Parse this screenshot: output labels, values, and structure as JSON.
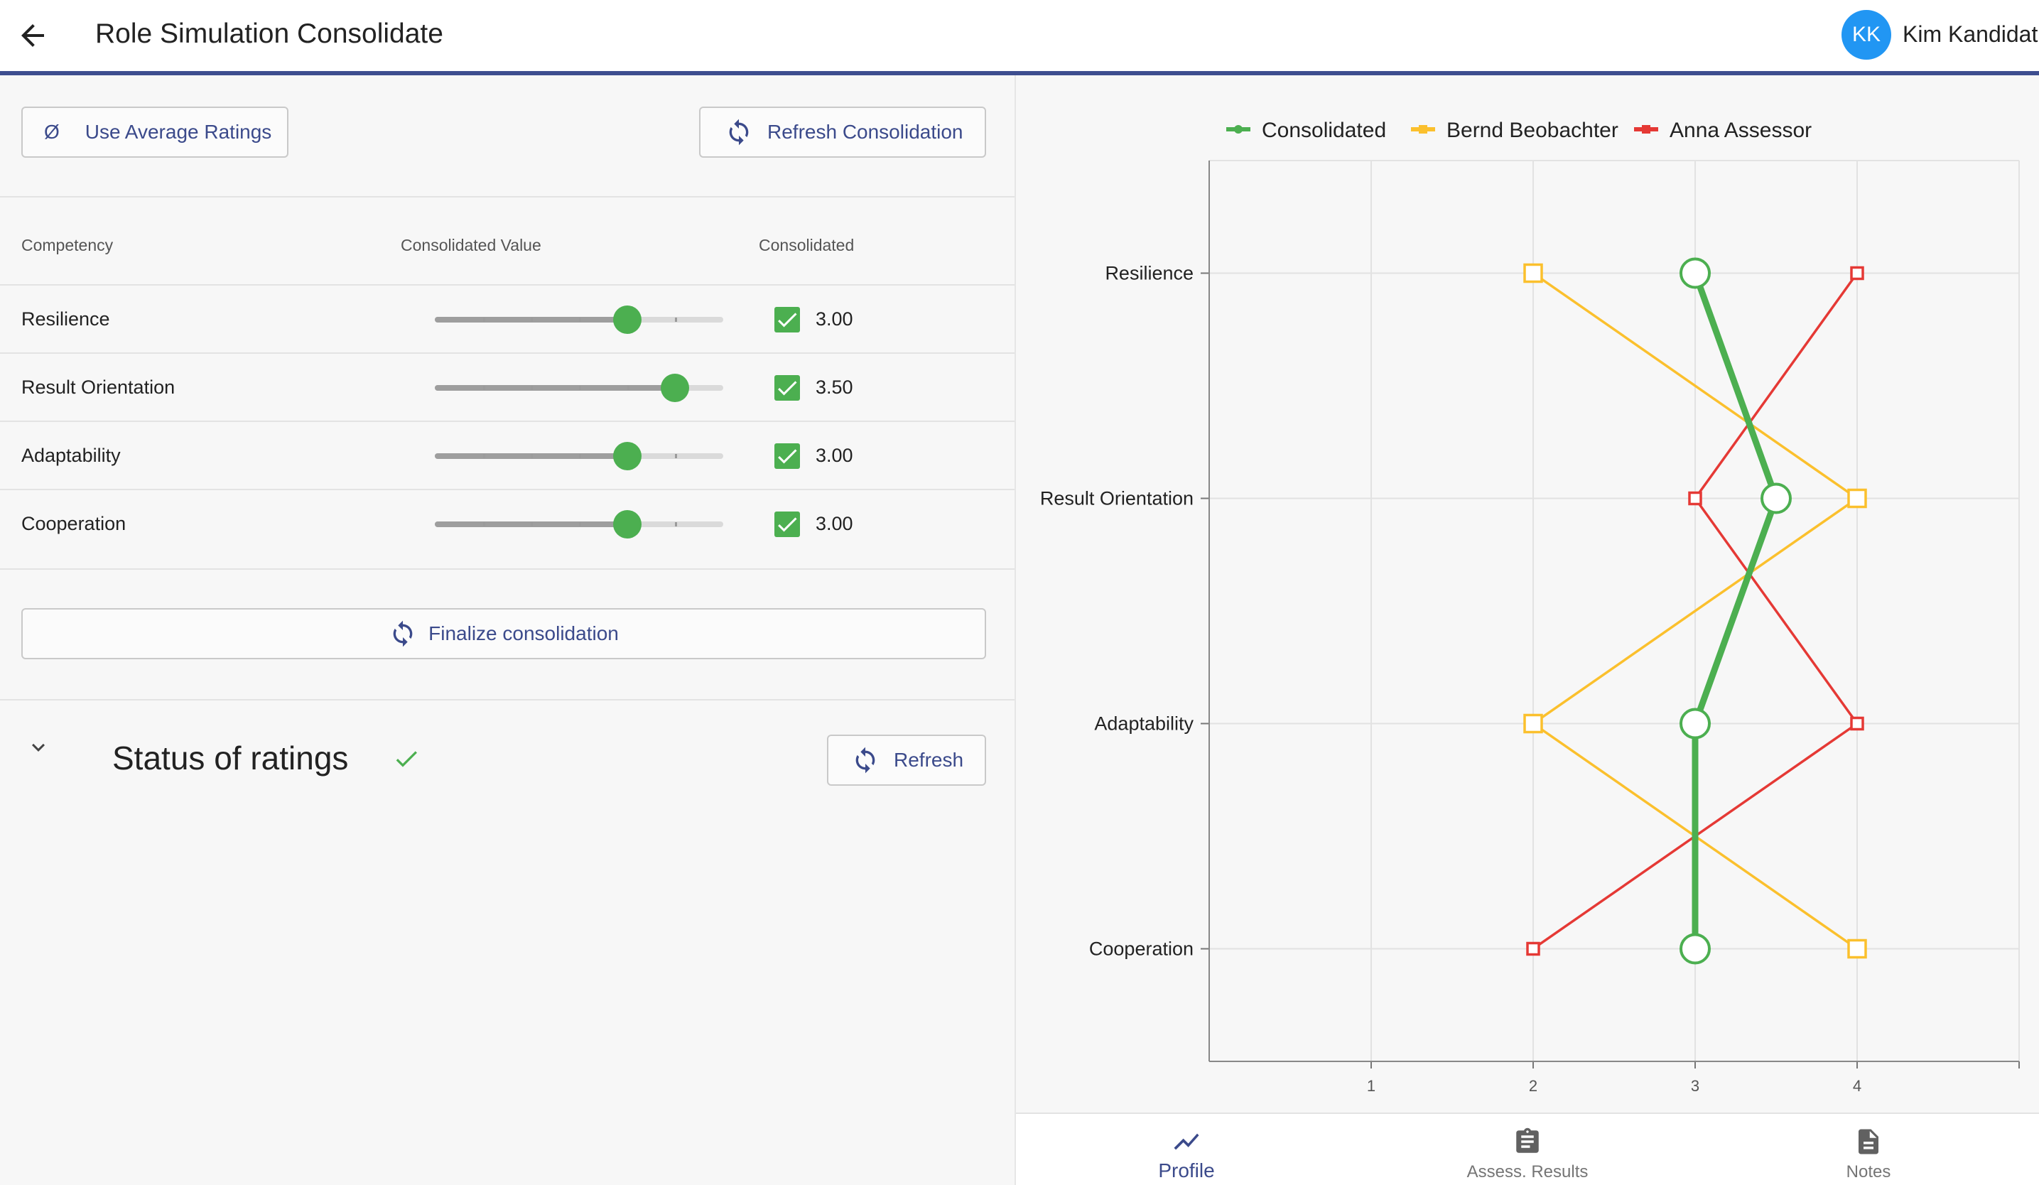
{
  "app_bar": {
    "title": "Role Simulation Consolidate",
    "user_initials": "KK",
    "user_name": "Kim Kandidat",
    "accent_color": "#3e4e8f",
    "avatar_color": "#2196f3"
  },
  "toolbar": {
    "avg_symbol": "Ø",
    "use_average_label": "Use Average Ratings",
    "refresh_consolidation_label": "Refresh Consolidation"
  },
  "table": {
    "headers": {
      "competency": "Competency",
      "consolidated_value": "Consolidated Value",
      "consolidated": "Consolidated"
    },
    "slider_min": 1,
    "slider_max": 4,
    "slider_step": 0.5,
    "rows": [
      {
        "competency": "Resilience",
        "value": 3.0,
        "value_text": "3.00",
        "consolidated": true
      },
      {
        "competency": "Result Orientation",
        "value": 3.5,
        "value_text": "3.50",
        "consolidated": true
      },
      {
        "competency": "Adaptability",
        "value": 3.0,
        "value_text": "3.00",
        "consolidated": true
      },
      {
        "competency": "Cooperation",
        "value": 3.0,
        "value_text": "3.00",
        "consolidated": true
      }
    ]
  },
  "finalize_label": "Finalize consolidation",
  "status": {
    "title": "Status of ratings",
    "complete": true,
    "refresh_label": "Refresh"
  },
  "chart_data": {
    "type": "line",
    "orientation": "horizontal",
    "categories": [
      "Resilience",
      "Result Orientation",
      "Adaptability",
      "Cooperation"
    ],
    "x_ticks": [
      "1",
      "2",
      "3",
      "4"
    ],
    "xlim": [
      0,
      5
    ],
    "grid": true,
    "legend_position": "top",
    "series": [
      {
        "name": "Consolidated",
        "color": "#4caf50",
        "marker": "circle",
        "values": [
          3,
          3.5,
          3,
          3
        ]
      },
      {
        "name": "Bernd Beobachter",
        "color": "#fbc02d",
        "marker": "square",
        "values": [
          2,
          4,
          2,
          4
        ]
      },
      {
        "name": "Anna Assessor",
        "color": "#e53935",
        "marker": "square",
        "values": [
          4,
          3,
          4,
          2
        ]
      }
    ]
  },
  "bottom_nav": {
    "items": [
      {
        "label": "Profile",
        "icon": "chart-line-icon",
        "active": true
      },
      {
        "label": "Assess. Results",
        "icon": "clipboard-icon",
        "active": false
      },
      {
        "label": "Notes",
        "icon": "document-icon",
        "active": false
      }
    ]
  }
}
